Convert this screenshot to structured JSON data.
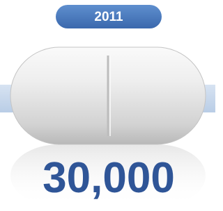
{
  "badge": "2011",
  "figure": "30,000"
}
